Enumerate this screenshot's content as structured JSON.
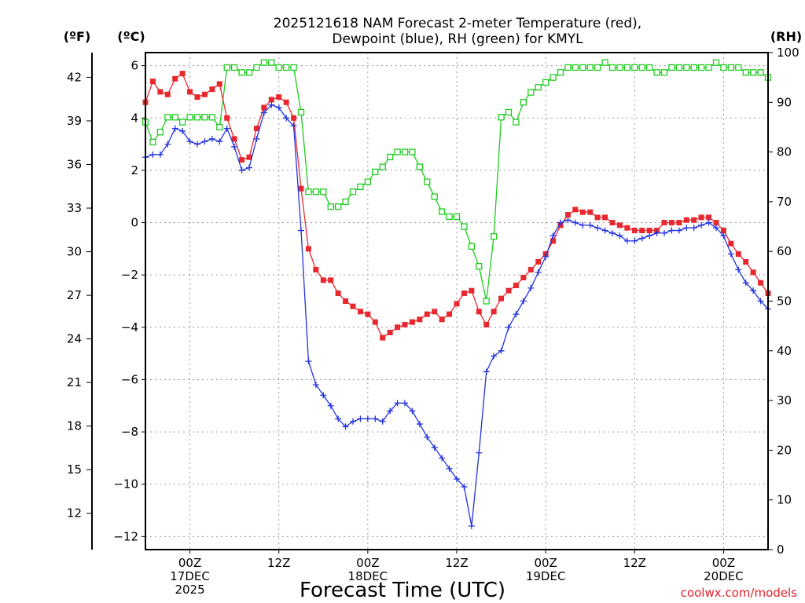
{
  "chart_data": {
    "type": "line",
    "title_line1": "2025121618 NAM Forecast 2-meter Temperature (red),",
    "title_line2": "Dewpoint (blue), RH (green) for KMYL",
    "xlabel": "Forecast Time (UTC)",
    "credit": "coolwx.com/models",
    "units": {
      "fahrenheit": "(ºF)",
      "celsius": "(ºC)",
      "rh": "(RH)"
    },
    "x_axis": {
      "unit": "hours since 2025-12-16 18Z",
      "range": [
        0,
        84
      ],
      "ticks": [
        {
          "hour": 6,
          "line1": "00Z",
          "line2": "17DEC",
          "line3": "2025"
        },
        {
          "hour": 18,
          "line1": "12Z",
          "line2": "",
          "line3": ""
        },
        {
          "hour": 30,
          "line1": "00Z",
          "line2": "18DEC",
          "line3": ""
        },
        {
          "hour": 42,
          "line1": "12Z",
          "line2": "",
          "line3": ""
        },
        {
          "hour": 54,
          "line1": "00Z",
          "line2": "19DEC",
          "line3": ""
        },
        {
          "hour": 66,
          "line1": "12Z",
          "line2": "",
          "line3": ""
        },
        {
          "hour": 78,
          "line1": "00Z",
          "line2": "20DEC",
          "line3": ""
        }
      ]
    },
    "y_celsius": {
      "range": [
        -12.5,
        6.5
      ],
      "ticks": [
        "6",
        "4",
        "2",
        "0",
        "−2",
        "−4",
        "−6",
        "−8",
        "−10",
        "−12"
      ],
      "tick_values": [
        6,
        4,
        2,
        0,
        -2,
        -4,
        -6,
        -8,
        -10,
        -12
      ]
    },
    "y_fahrenheit": {
      "ticks": [
        "42",
        "39",
        "36",
        "33",
        "30",
        "27",
        "24",
        "21",
        "18",
        "15",
        "12"
      ],
      "tick_values": [
        42,
        39,
        36,
        33,
        30,
        27,
        24,
        21,
        18,
        15,
        12
      ]
    },
    "y_rh": {
      "range": [
        0,
        100
      ],
      "ticks": [
        "100",
        "90",
        "80",
        "70",
        "60",
        "50",
        "40",
        "30",
        "20",
        "10",
        "0"
      ],
      "tick_values": [
        100,
        90,
        80,
        70,
        60,
        50,
        40,
        30,
        20,
        10,
        0
      ]
    },
    "series": [
      {
        "name": "Temperature",
        "unit": "C",
        "color": "#e8282e",
        "marker": "filled-square",
        "x": [
          0,
          1,
          2,
          3,
          4,
          5,
          6,
          7,
          8,
          9,
          10,
          11,
          12,
          13,
          14,
          15,
          16,
          17,
          18,
          19,
          20,
          21,
          22,
          23,
          24,
          25,
          26,
          27,
          28,
          29,
          30,
          31,
          32,
          33,
          34,
          35,
          36,
          37,
          38,
          39,
          40,
          41,
          42,
          43,
          44,
          45,
          46,
          47,
          48,
          49,
          50,
          51,
          52,
          53,
          54,
          55,
          56,
          57,
          58,
          59,
          60,
          61,
          62,
          63,
          64,
          65,
          66,
          67,
          68,
          69,
          70,
          71,
          72,
          73,
          74,
          75,
          76,
          77,
          78,
          79,
          80,
          81,
          82,
          83,
          84
        ],
        "values": [
          4.6,
          5.4,
          5.0,
          4.9,
          5.5,
          5.7,
          5.0,
          4.8,
          4.9,
          5.1,
          5.3,
          4.0,
          3.2,
          2.4,
          2.5,
          3.6,
          4.4,
          4.7,
          4.8,
          4.6,
          4.0,
          1.3,
          -1.0,
          -1.8,
          -2.2,
          -2.2,
          -2.7,
          -3.0,
          -3.2,
          -3.4,
          -3.5,
          -3.8,
          -4.4,
          -4.2,
          -4.0,
          -3.9,
          -3.8,
          -3.7,
          -3.5,
          -3.4,
          -3.7,
          -3.5,
          -3.1,
          -2.7,
          -2.6,
          -3.4,
          -3.9,
          -3.4,
          -2.9,
          -2.6,
          -2.4,
          -2.1,
          -1.8,
          -1.5,
          -1.2,
          -0.7,
          -0.1,
          0.3,
          0.5,
          0.4,
          0.4,
          0.2,
          0.2,
          0.0,
          -0.1,
          -0.2,
          -0.3,
          -0.3,
          -0.3,
          -0.3,
          0.0,
          0.0,
          0.0,
          0.1,
          0.1,
          0.2,
          0.2,
          0.0,
          -0.3,
          -0.8,
          -1.2,
          -1.5,
          -1.9,
          -2.3,
          -2.7
        ]
      },
      {
        "name": "Dewpoint",
        "unit": "C",
        "color": "#2233dd",
        "marker": "plus",
        "x": [
          0,
          1,
          2,
          3,
          4,
          5,
          6,
          7,
          8,
          9,
          10,
          11,
          12,
          13,
          14,
          15,
          16,
          17,
          18,
          19,
          20,
          21,
          22,
          23,
          24,
          25,
          26,
          27,
          28,
          29,
          30,
          31,
          32,
          33,
          34,
          35,
          36,
          37,
          38,
          39,
          40,
          41,
          42,
          43,
          44,
          45,
          46,
          47,
          48,
          49,
          50,
          51,
          52,
          53,
          54,
          55,
          56,
          57,
          58,
          59,
          60,
          61,
          62,
          63,
          64,
          65,
          66,
          67,
          68,
          69,
          70,
          71,
          72,
          73,
          74,
          75,
          76,
          77,
          78,
          79,
          80,
          81,
          82,
          83,
          84
        ],
        "values": [
          2.5,
          2.6,
          2.6,
          3.0,
          3.6,
          3.5,
          3.1,
          3.0,
          3.1,
          3.2,
          3.1,
          3.6,
          2.9,
          2.0,
          2.1,
          3.2,
          4.2,
          4.5,
          4.4,
          4.0,
          3.7,
          -0.3,
          -5.3,
          -6.2,
          -6.6,
          -7.0,
          -7.5,
          -7.8,
          -7.6,
          -7.5,
          -7.5,
          -7.5,
          -7.6,
          -7.2,
          -6.9,
          -6.9,
          -7.2,
          -7.7,
          -8.2,
          -8.6,
          -9.0,
          -9.4,
          -9.8,
          -10.1,
          -11.6,
          -8.8,
          -5.7,
          -5.1,
          -4.9,
          -4.0,
          -3.5,
          -3.0,
          -2.5,
          -1.9,
          -1.3,
          -0.5,
          0.0,
          0.1,
          0.0,
          -0.1,
          -0.1,
          -0.2,
          -0.3,
          -0.4,
          -0.5,
          -0.7,
          -0.7,
          -0.6,
          -0.5,
          -0.4,
          -0.4,
          -0.3,
          -0.3,
          -0.2,
          -0.2,
          -0.1,
          0.0,
          -0.2,
          -0.5,
          -1.2,
          -1.8,
          -2.3,
          -2.6,
          -3.0,
          -3.3
        ]
      },
      {
        "name": "Relative Humidity",
        "unit": "%",
        "color": "#1fcc1f",
        "marker": "open-square",
        "x": [
          0,
          1,
          2,
          3,
          4,
          5,
          6,
          7,
          8,
          9,
          10,
          11,
          12,
          13,
          14,
          15,
          16,
          17,
          18,
          19,
          20,
          21,
          22,
          23,
          24,
          25,
          26,
          27,
          28,
          29,
          30,
          31,
          32,
          33,
          34,
          35,
          36,
          37,
          38,
          39,
          40,
          41,
          42,
          43,
          44,
          45,
          46,
          47,
          48,
          49,
          50,
          51,
          52,
          53,
          54,
          55,
          56,
          57,
          58,
          59,
          60,
          61,
          62,
          63,
          64,
          65,
          66,
          67,
          68,
          69,
          70,
          71,
          72,
          73,
          74,
          75,
          76,
          77,
          78,
          79,
          80,
          81,
          82,
          83,
          84
        ],
        "values": [
          86,
          82,
          84,
          87,
          87,
          86,
          87,
          87,
          87,
          87,
          85,
          97,
          97,
          96,
          96,
          97,
          98,
          98,
          97,
          97,
          97,
          88,
          72,
          72,
          72,
          69,
          69,
          70,
          72,
          73,
          74,
          76,
          77,
          79,
          80,
          80,
          80,
          77,
          74,
          71,
          68,
          67,
          67,
          65,
          61,
          57,
          50,
          63,
          87,
          88,
          86,
          90,
          92,
          93,
          94,
          95,
          96,
          97,
          97,
          97,
          97,
          97,
          98,
          97,
          97,
          97,
          97,
          97,
          97,
          96,
          96,
          97,
          97,
          97,
          97,
          97,
          97,
          98,
          97,
          97,
          97,
          96,
          96,
          96,
          95
        ]
      }
    ]
  }
}
